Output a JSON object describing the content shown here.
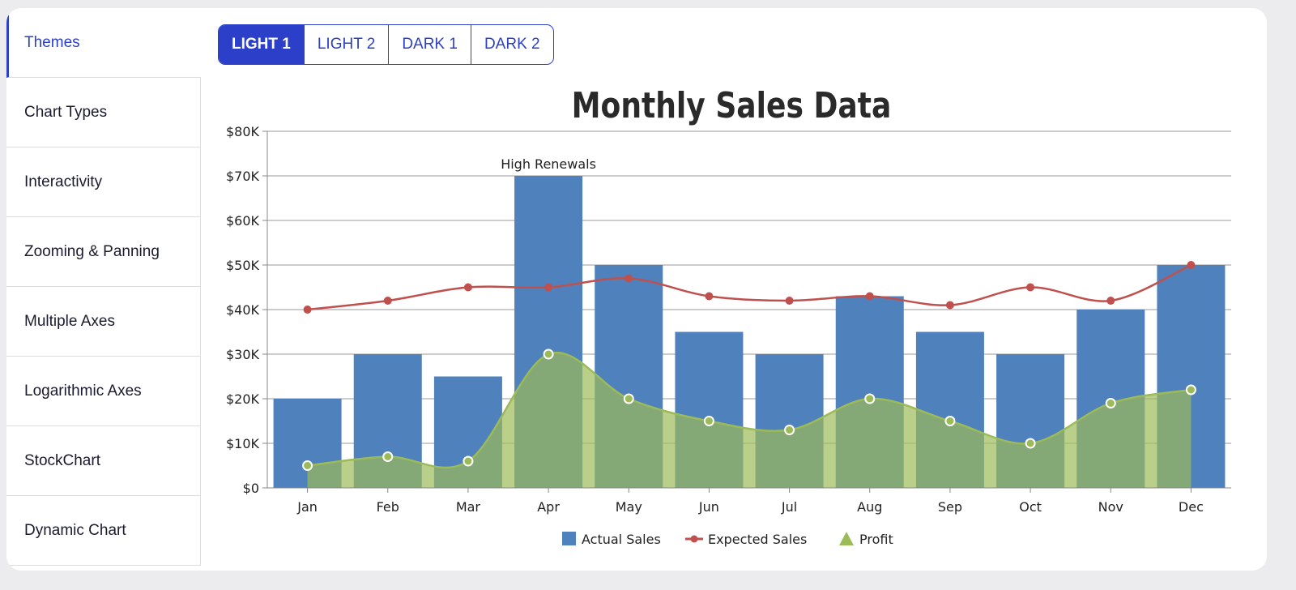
{
  "sidebar": {
    "items": [
      {
        "label": "Themes",
        "active": true
      },
      {
        "label": "Chart Types"
      },
      {
        "label": "Interactivity"
      },
      {
        "label": "Zooming & Panning"
      },
      {
        "label": "Multiple Axes"
      },
      {
        "label": "Logarithmic Axes"
      },
      {
        "label": "StockChart"
      },
      {
        "label": "Dynamic Chart"
      }
    ]
  },
  "tabs": [
    {
      "label": "LIGHT 1",
      "active": true
    },
    {
      "label": "LIGHT 2"
    },
    {
      "label": "DARK 1"
    },
    {
      "label": "DARK 2"
    }
  ],
  "colors": {
    "accent": "#2b3fc9",
    "actual": "#4f81bc",
    "expected": "#c0504e",
    "profit": "#9bbb59"
  },
  "chart_data": {
    "type": "bar",
    "title": "Monthly Sales Data",
    "categories": [
      "Jan",
      "Feb",
      "Mar",
      "Apr",
      "May",
      "Jun",
      "Jul",
      "Aug",
      "Sep",
      "Oct",
      "Nov",
      "Dec"
    ],
    "ylim": [
      0,
      80000
    ],
    "yticks": [
      "$0",
      "$10K",
      "$20K",
      "$30K",
      "$40K",
      "$50K",
      "$60K",
      "$70K",
      "$80K"
    ],
    "grid": true,
    "legend_placement": "bottom",
    "series": [
      {
        "name": "Actual Sales",
        "type": "column",
        "values": [
          20000,
          30000,
          25000,
          70000,
          50000,
          35000,
          30000,
          43000,
          35000,
          30000,
          40000,
          50000
        ]
      },
      {
        "name": "Expected Sales",
        "type": "spline",
        "values": [
          40000,
          42000,
          45000,
          45000,
          47000,
          43000,
          42000,
          43000,
          41000,
          45000,
          42000,
          50000
        ]
      },
      {
        "name": "Profit",
        "type": "splineArea",
        "values": [
          5000,
          7000,
          6000,
          30000,
          20000,
          15000,
          13000,
          20000,
          15000,
          10000,
          19000,
          22000
        ]
      }
    ],
    "annotations": [
      {
        "category": "Apr",
        "text": "High Renewals"
      }
    ]
  }
}
